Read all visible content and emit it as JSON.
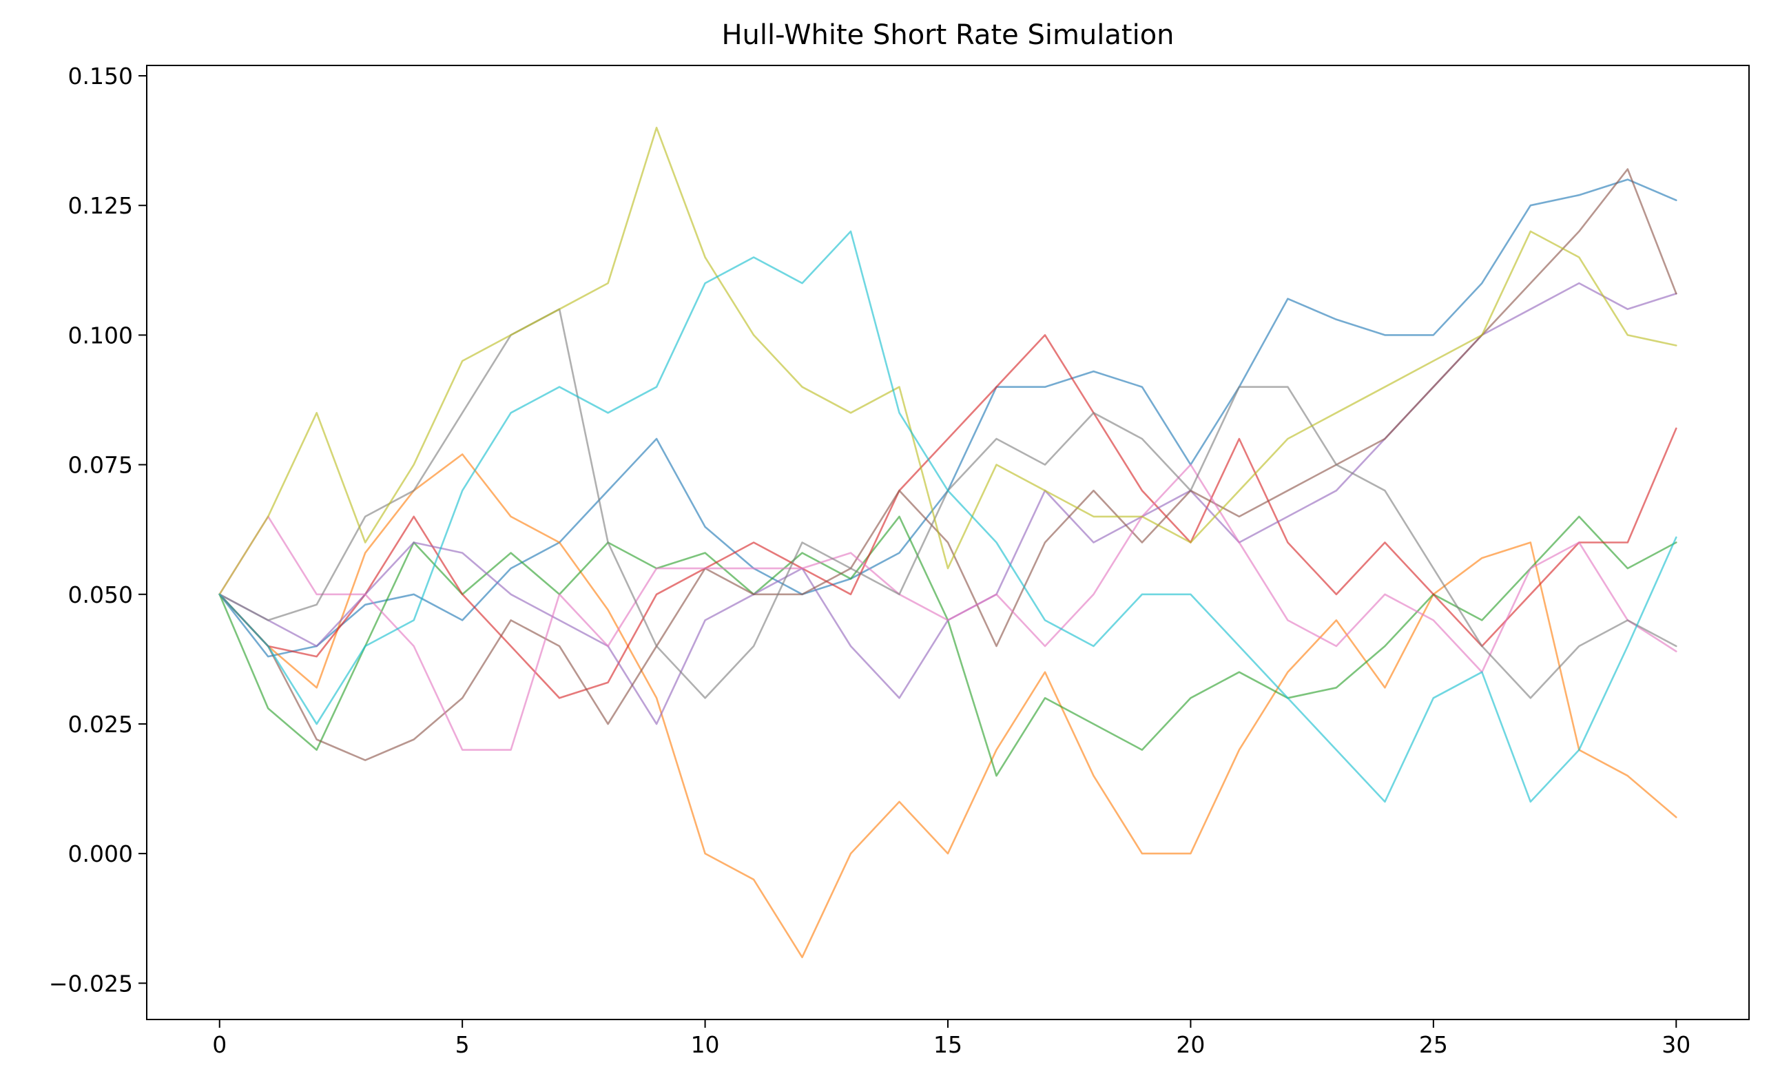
{
  "chart_data": {
    "type": "line",
    "title": "Hull-White Short Rate Simulation",
    "xlabel": "",
    "ylabel": "",
    "xlim": [
      -1.5,
      31.5
    ],
    "ylim": [
      -0.032,
      0.152
    ],
    "grid": false,
    "x_ticks": [
      0,
      5,
      10,
      15,
      20,
      25,
      30
    ],
    "x_tick_labels": [
      "0",
      "5",
      "10",
      "15",
      "20",
      "25",
      "30"
    ],
    "y_ticks": [
      -0.025,
      0.0,
      0.025,
      0.05,
      0.075,
      0.1,
      0.125,
      0.15
    ],
    "y_tick_labels": [
      "−0.025",
      "0.000",
      "0.025",
      "0.050",
      "0.075",
      "0.100",
      "0.125",
      "0.150"
    ],
    "x": [
      0,
      1,
      2,
      3,
      4,
      5,
      6,
      7,
      8,
      9,
      10,
      11,
      12,
      13,
      14,
      15,
      16,
      17,
      18,
      19,
      20,
      21,
      22,
      23,
      24,
      25,
      26,
      27,
      28,
      29,
      30
    ],
    "series": [
      {
        "color": "#1f77b4",
        "values": [
          0.05,
          0.038,
          0.04,
          0.048,
          0.05,
          0.045,
          0.055,
          0.06,
          0.07,
          0.08,
          0.063,
          0.055,
          0.05,
          0.053,
          0.058,
          0.07,
          0.09,
          0.09,
          0.093,
          0.09,
          0.075,
          0.09,
          0.107,
          0.103,
          0.1,
          0.1,
          0.11,
          0.125,
          0.127,
          0.13,
          0.126
        ]
      },
      {
        "color": "#ff7f0e",
        "values": [
          0.05,
          0.04,
          0.032,
          0.058,
          0.07,
          0.077,
          0.065,
          0.06,
          0.047,
          0.03,
          0.0,
          -0.005,
          -0.02,
          0.0,
          0.01,
          0.0,
          0.02,
          0.035,
          0.015,
          0.0,
          0.0,
          0.02,
          0.035,
          0.045,
          0.032,
          0.05,
          0.057,
          0.06,
          0.02,
          0.015,
          0.007
        ]
      },
      {
        "color": "#2ca02c",
        "values": [
          0.05,
          0.028,
          0.02,
          0.04,
          0.06,
          0.05,
          0.058,
          0.05,
          0.06,
          0.055,
          0.058,
          0.05,
          0.058,
          0.053,
          0.065,
          0.045,
          0.015,
          0.03,
          0.025,
          0.02,
          0.03,
          0.035,
          0.03,
          0.032,
          0.04,
          0.05,
          0.045,
          0.055,
          0.065,
          0.055,
          0.06
        ]
      },
      {
        "color": "#d62728",
        "values": [
          0.05,
          0.04,
          0.038,
          0.05,
          0.065,
          0.05,
          0.04,
          0.03,
          0.033,
          0.05,
          0.055,
          0.06,
          0.055,
          0.05,
          0.07,
          0.08,
          0.09,
          0.1,
          0.085,
          0.07,
          0.06,
          0.08,
          0.06,
          0.05,
          0.06,
          0.05,
          0.04,
          0.05,
          0.06,
          0.06,
          0.082
        ]
      },
      {
        "color": "#9467bd",
        "values": [
          0.05,
          0.045,
          0.04,
          0.05,
          0.06,
          0.058,
          0.05,
          0.045,
          0.04,
          0.025,
          0.045,
          0.05,
          0.055,
          0.04,
          0.03,
          0.045,
          0.05,
          0.07,
          0.06,
          0.065,
          0.07,
          0.06,
          0.065,
          0.07,
          0.08,
          0.09,
          0.1,
          0.105,
          0.11,
          0.105,
          0.108
        ]
      },
      {
        "color": "#8c564b",
        "values": [
          0.05,
          0.04,
          0.022,
          0.018,
          0.022,
          0.03,
          0.045,
          0.04,
          0.025,
          0.04,
          0.055,
          0.05,
          0.05,
          0.055,
          0.07,
          0.06,
          0.04,
          0.06,
          0.07,
          0.06,
          0.07,
          0.065,
          0.07,
          0.075,
          0.08,
          0.09,
          0.1,
          0.11,
          0.12,
          0.132,
          0.108
        ]
      },
      {
        "color": "#e377c2",
        "values": [
          0.05,
          0.065,
          0.05,
          0.05,
          0.04,
          0.02,
          0.02,
          0.05,
          0.04,
          0.055,
          0.055,
          0.055,
          0.055,
          0.058,
          0.05,
          0.045,
          0.05,
          0.04,
          0.05,
          0.065,
          0.075,
          0.06,
          0.045,
          0.04,
          0.05,
          0.045,
          0.035,
          0.055,
          0.06,
          0.045,
          0.039
        ]
      },
      {
        "color": "#7f7f7f",
        "values": [
          0.05,
          0.045,
          0.048,
          0.065,
          0.07,
          0.085,
          0.1,
          0.105,
          0.06,
          0.04,
          0.03,
          0.04,
          0.06,
          0.055,
          0.05,
          0.07,
          0.08,
          0.075,
          0.085,
          0.08,
          0.07,
          0.09,
          0.09,
          0.075,
          0.07,
          0.055,
          0.04,
          0.03,
          0.04,
          0.045,
          0.04
        ]
      },
      {
        "color": "#bcbd22",
        "values": [
          0.05,
          0.065,
          0.085,
          0.06,
          0.075,
          0.095,
          0.1,
          0.105,
          0.11,
          0.14,
          0.115,
          0.1,
          0.09,
          0.085,
          0.09,
          0.055,
          0.075,
          0.07,
          0.065,
          0.065,
          0.06,
          0.07,
          0.08,
          0.085,
          0.09,
          0.095,
          0.1,
          0.12,
          0.115,
          0.1,
          0.098
        ]
      },
      {
        "color": "#17becf",
        "values": [
          0.05,
          0.04,
          0.025,
          0.04,
          0.045,
          0.07,
          0.085,
          0.09,
          0.085,
          0.09,
          0.11,
          0.115,
          0.11,
          0.12,
          0.085,
          0.07,
          0.06,
          0.045,
          0.04,
          0.05,
          0.05,
          0.04,
          0.03,
          0.02,
          0.01,
          0.03,
          0.035,
          0.01,
          0.02,
          0.04,
          0.061
        ]
      }
    ]
  }
}
